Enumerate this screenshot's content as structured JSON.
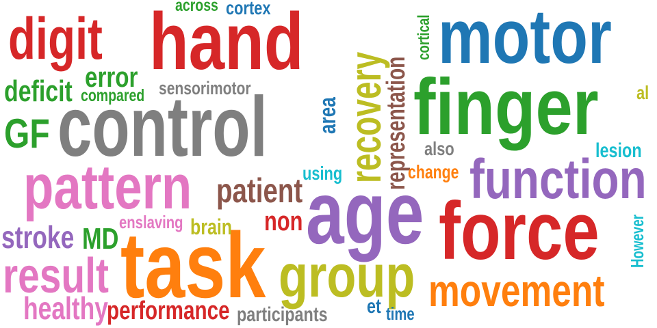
{
  "words": [
    {
      "text": "hand",
      "color": "#d62728"
    },
    {
      "text": "motor",
      "color": "#1f77b4"
    },
    {
      "text": "control",
      "color": "#7f7f7f"
    },
    {
      "text": "finger",
      "color": "#2ca02c"
    },
    {
      "text": "age",
      "color": "#9467bd"
    },
    {
      "text": "force",
      "color": "#d62728"
    },
    {
      "text": "task",
      "color": "#ff7f0e"
    },
    {
      "text": "recovery",
      "color": "#bcbd22"
    },
    {
      "text": "pattern",
      "color": "#e377c2"
    },
    {
      "text": "function",
      "color": "#9467bd"
    },
    {
      "text": "group",
      "color": "#bcbd22"
    },
    {
      "text": "digit",
      "color": "#d62728"
    },
    {
      "text": "movement",
      "color": "#ff7f0e"
    },
    {
      "text": "result",
      "color": "#e377c2"
    },
    {
      "text": "representation",
      "color": "#8c564b"
    },
    {
      "text": "GF",
      "color": "#2ca02c"
    },
    {
      "text": "patient",
      "color": "#8c564b"
    },
    {
      "text": "healthy",
      "color": "#e377c2"
    },
    {
      "text": "performance",
      "color": "#d62728"
    },
    {
      "text": "stroke",
      "color": "#9467bd"
    },
    {
      "text": "deficit",
      "color": "#2ca02c"
    },
    {
      "text": "error",
      "color": "#2ca02c"
    },
    {
      "text": "area",
      "color": "#1f77b4"
    },
    {
      "text": "MD",
      "color": "#2ca02c"
    },
    {
      "text": "non",
      "color": "#d62728"
    },
    {
      "text": "participants",
      "color": "#7f7f7f"
    },
    {
      "text": "sensorimotor",
      "color": "#7f7f7f"
    },
    {
      "text": "brain",
      "color": "#bcbd22"
    },
    {
      "text": "compared",
      "color": "#2ca02c"
    },
    {
      "text": "enslaving",
      "color": "#e377c2"
    },
    {
      "text": "lesion",
      "color": "#17becf"
    },
    {
      "text": "change",
      "color": "#ff7f0e"
    },
    {
      "text": "using",
      "color": "#17becf"
    },
    {
      "text": "across",
      "color": "#2ca02c"
    },
    {
      "text": "cortex",
      "color": "#1f77b4"
    },
    {
      "text": "cortical",
      "color": "#2ca02c"
    },
    {
      "text": "also",
      "color": "#7f7f7f"
    },
    {
      "text": "et",
      "color": "#1f77b4"
    },
    {
      "text": "time",
      "color": "#1f77b4"
    },
    {
      "text": "al",
      "color": "#bcbd22"
    },
    {
      "text": "However",
      "color": "#17becf"
    }
  ]
}
